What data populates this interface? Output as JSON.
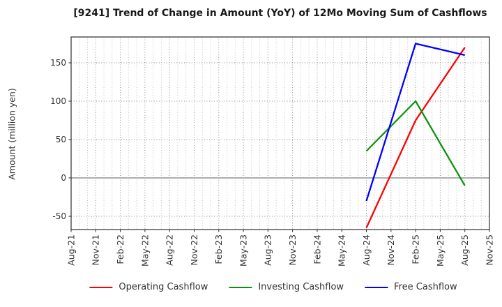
{
  "chart_data": {
    "type": "line",
    "title": "[9241]  Trend of Change in Amount (YoY) of 12Mo Moving Sum of Cashflows",
    "xlabel": "",
    "ylabel": "Amount (million yen)",
    "categories": [
      "Aug-21",
      "Nov-21",
      "Feb-22",
      "May-22",
      "Aug-22",
      "Nov-22",
      "Feb-23",
      "May-23",
      "Aug-23",
      "Nov-23",
      "Feb-24",
      "May-24",
      "Aug-24",
      "Nov-24",
      "Feb-25",
      "May-25",
      "Aug-25",
      "Nov-25"
    ],
    "yticks": [
      -50,
      0,
      50,
      100,
      150
    ],
    "ylim": [
      -67,
      184
    ],
    "grid": {
      "major": "dotted",
      "minor_vertical": "dotted monthly (2 between major ticks)",
      "zero_line": "solid"
    },
    "legend_position": "bottom-center",
    "series": [
      {
        "name": "Operating Cashflow",
        "color": "#ff0000",
        "points": [
          {
            "x": "Aug-24",
            "y": -65
          },
          {
            "x": "Feb-25",
            "y": 75
          },
          {
            "x": "Aug-25",
            "y": 170
          }
        ]
      },
      {
        "name": "Investing Cashflow",
        "color": "#0c930c",
        "points": [
          {
            "x": "Aug-24",
            "y": 35
          },
          {
            "x": "Feb-25",
            "y": 100
          },
          {
            "x": "Aug-25",
            "y": -10
          }
        ]
      },
      {
        "name": "Free Cashflow",
        "color": "#0000ff",
        "points": [
          {
            "x": "Aug-24",
            "y": -30
          },
          {
            "x": "Feb-25",
            "y": 175
          },
          {
            "x": "Aug-25",
            "y": 160
          }
        ]
      }
    ],
    "colors": {
      "frame": "#2b2b2b",
      "grid_major": "#8a8a8a",
      "grid_minor": "#b8b8b8",
      "zero_line": "#7d7d7d",
      "text": "#333333",
      "background": "#ffffff"
    }
  }
}
